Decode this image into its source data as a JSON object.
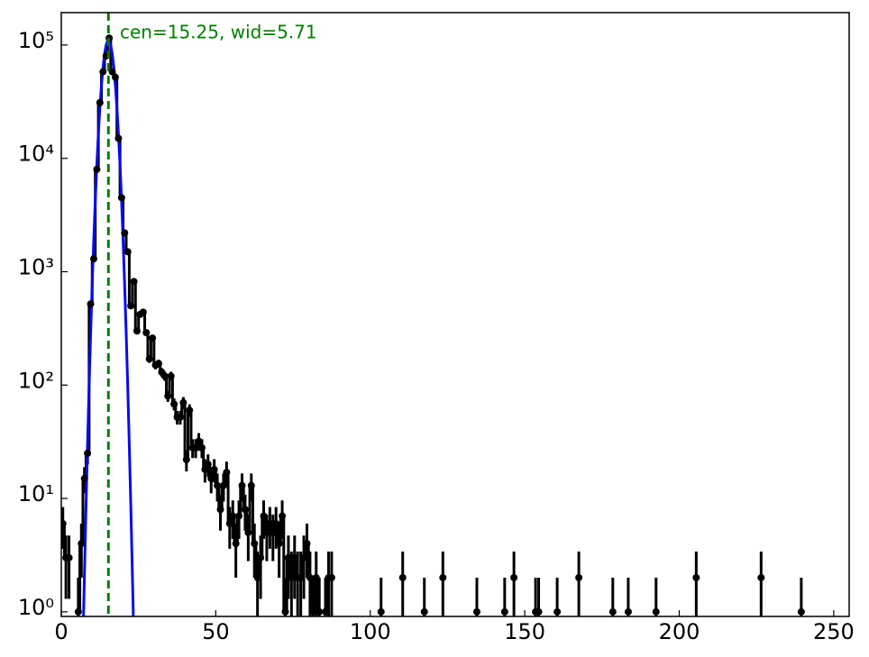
{
  "chart_data": {
    "type": "errorbar",
    "annotation": "cen=15.25, wid=5.71",
    "xlim": [
      0,
      255
    ],
    "ylim": [
      0.91,
      193000
    ],
    "log_y": true,
    "xticks": [
      0,
      50,
      100,
      150,
      200,
      250
    ],
    "yticks": [
      {
        "value": 1,
        "label": "10⁰"
      },
      {
        "value": 10,
        "label": "10¹"
      },
      {
        "value": 100,
        "label": "10²"
      },
      {
        "value": 1000,
        "label": "10³"
      },
      {
        "value": 10000,
        "label": "10⁴"
      },
      {
        "value": 100000,
        "label": "10⁵"
      }
    ],
    "vline": 15.25,
    "vline_color": "#008000",
    "annotation_color": "#008000",
    "data": {
      "color": "#000000",
      "x": [
        0.5,
        1.5,
        2.5,
        5.5,
        6.5,
        7.5,
        8.5,
        9.5,
        10.5,
        11.5,
        12.5,
        13.5,
        14.5,
        15.5,
        16.5,
        17.5,
        18.5,
        19.5,
        20.5,
        21.5,
        22.5,
        23.5,
        24.5,
        25.5,
        26.5,
        27.5,
        28.5,
        29.5,
        30.5,
        31.5,
        32.5,
        33.5,
        34.5,
        35.5,
        36.5,
        37.5,
        38.5,
        39.5,
        40.5,
        41.5,
        42.5,
        43.5,
        44.5,
        45.5,
        46.5,
        47.5,
        48.5,
        49.5,
        50.5,
        51.5,
        52.5,
        53.5,
        54.5,
        55.5,
        56.5,
        57.5,
        58.5,
        59.5,
        60.5,
        61.5,
        62.5,
        63.5,
        64.5,
        65.5,
        66.5,
        67.5,
        68.5,
        69.5,
        70.5,
        71.5,
        72.5,
        73.5,
        74.5,
        75.5,
        76.5,
        77.5,
        78.5,
        79.5,
        80.5,
        81.5,
        82.5,
        83.5,
        85.5,
        86.5,
        87.5,
        103.5,
        110.5,
        117.5,
        123.5,
        134.5,
        143.5,
        146.5,
        153.5,
        154.5,
        160.5,
        167.5,
        178.5,
        183.5,
        192.5,
        205.5,
        226.5,
        239.5
      ],
      "values": [
        6,
        3,
        3,
        1,
        4,
        15,
        25,
        520,
        1300,
        8000,
        31000,
        58000,
        80000,
        115000,
        58000,
        52000,
        15000,
        4500,
        2200,
        1500,
        500,
        820,
        300,
        420,
        440,
        290,
        170,
        260,
        150,
        155,
        130,
        120,
        80,
        120,
        68,
        52,
        52,
        70,
        22,
        60,
        28,
        28,
        32,
        28,
        18,
        20,
        15,
        18,
        13,
        8,
        13,
        17,
        6,
        7,
        4,
        7,
        13,
        8,
        5,
        13,
        4,
        2,
        3,
        7,
        5,
        6,
        5,
        6,
        4,
        7,
        1,
        3,
        2,
        3,
        2,
        2,
        3,
        4,
        2,
        1,
        2,
        1,
        1,
        2,
        2,
        1,
        2,
        1,
        2,
        1,
        1,
        2,
        1,
        1,
        1,
        2,
        1,
        1,
        1,
        2,
        2,
        1
      ],
      "errors": [
        2.4,
        1.7,
        1.7,
        1,
        2,
        3.9,
        5,
        22.8,
        36.1,
        89.4,
        176.1,
        240.8,
        282.8,
        339.1,
        240.8,
        228,
        122.5,
        67.1,
        46.9,
        38.7,
        22.4,
        28.6,
        17.3,
        20.5,
        21,
        17,
        13,
        16.1,
        12.2,
        12.4,
        11.4,
        11,
        8.9,
        11,
        8.2,
        7.2,
        7.2,
        8.4,
        4.7,
        7.7,
        5.3,
        5.3,
        5.7,
        5.3,
        4.2,
        4.5,
        3.9,
        4.2,
        3.6,
        2.8,
        3.6,
        4.1,
        2.4,
        2.6,
        2,
        2.6,
        3.6,
        2.8,
        2.2,
        3.6,
        2,
        1.4,
        1.7,
        2.6,
        2.2,
        2.4,
        2.2,
        2.4,
        2,
        2.6,
        1,
        1.7,
        1.4,
        1.7,
        1.4,
        1.4,
        1.7,
        2,
        1.4,
        1,
        1.4,
        1,
        1,
        1.4,
        1.4,
        1,
        1.4,
        1,
        1.4,
        1,
        1,
        1.4,
        1,
        1,
        1,
        1.4,
        1,
        1,
        1,
        1.4,
        1.4,
        1
      ]
    },
    "fit": {
      "color": "#0a0aee",
      "x": [
        7,
        7.5,
        8,
        8.5,
        9,
        9.5,
        10,
        10.5,
        11,
        11.5,
        12,
        12.5,
        13,
        13.5,
        14,
        14.5,
        15,
        15.25,
        15.5,
        16,
        16.5,
        17,
        17.5,
        18,
        18.5,
        19,
        19.5,
        20,
        20.5,
        21,
        21.5,
        22,
        22.5,
        23,
        23.5
      ],
      "values": [
        0.53,
        2.2,
        8.6,
        30,
        98,
        287,
        771,
        1900,
        4270,
        8770,
        16400,
        28200,
        44300,
        63400,
        83000,
        99400,
        108800,
        110000,
        108800,
        99400,
        83000,
        63400,
        44300,
        28200,
        16400,
        8770,
        4270,
        1900,
        771,
        287,
        98,
        30,
        8.6,
        2.2,
        0.53
      ]
    }
  }
}
